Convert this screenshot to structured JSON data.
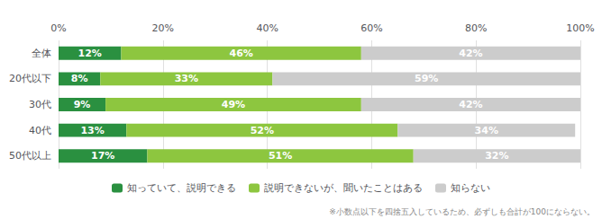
{
  "chart_data": {
    "type": "bar",
    "orientation": "horizontal",
    "stacked": true,
    "categories": [
      "全体",
      "20代以下",
      "30代",
      "40代",
      "50代以上"
    ],
    "series": [
      {
        "name": "知っていて、説明できる",
        "color": "#2a9040",
        "values": [
          12,
          8,
          9,
          13,
          17
        ],
        "value_labels": [
          "12%",
          "8%",
          "9%",
          "13%",
          "17%"
        ]
      },
      {
        "name": "説明できないが、聞いたことはある",
        "color": "#8dc63f",
        "values": [
          46,
          33,
          49,
          52,
          51
        ],
        "value_labels": [
          "46%",
          "33%",
          "49%",
          "52%",
          "51%"
        ]
      },
      {
        "name": "知らない",
        "color": "#cccccc",
        "values": [
          42,
          59,
          42,
          34,
          32
        ],
        "value_labels": [
          "42%",
          "59%",
          "42%",
          "34%",
          "32%"
        ]
      }
    ],
    "xlim": [
      0,
      100
    ],
    "xticks": [
      {
        "value": 0,
        "label": "0%"
      },
      {
        "value": 20,
        "label": "20%"
      },
      {
        "value": 40,
        "label": "40%"
      },
      {
        "value": 60,
        "label": "60%"
      },
      {
        "value": 80,
        "label": "80%"
      },
      {
        "value": 100,
        "label": "100%"
      }
    ],
    "grid": true,
    "legend": "bottom",
    "data_labels": true,
    "annotations": [
      "※小数点以下を四捨五入しているため、必ずしも合計が100にならない。"
    ]
  }
}
